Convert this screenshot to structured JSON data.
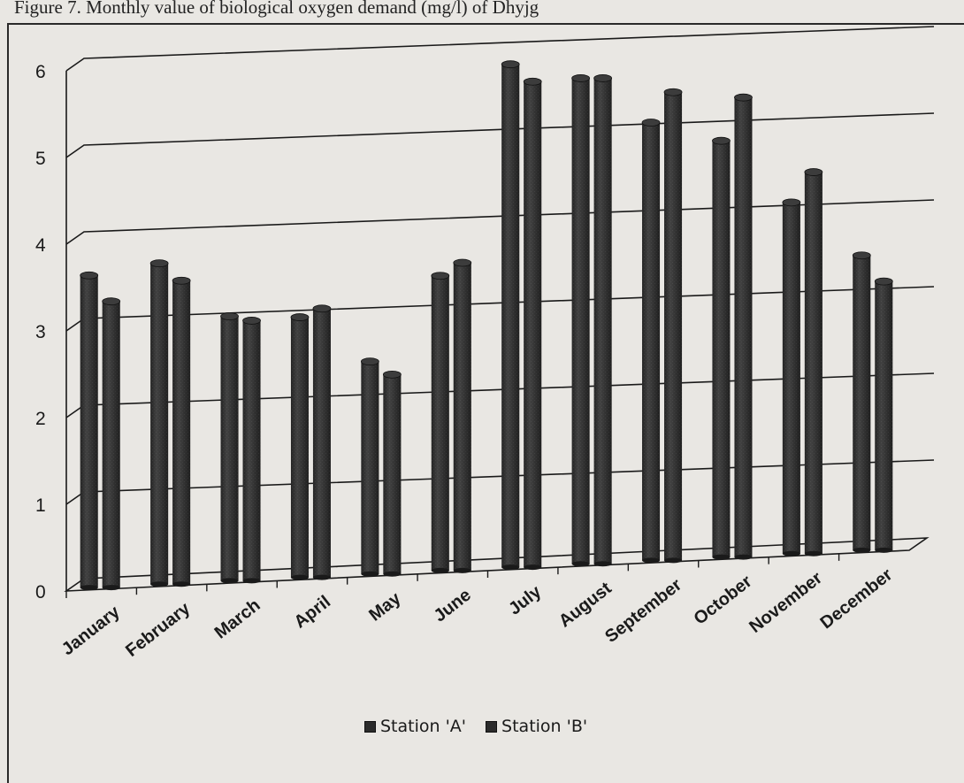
{
  "caption": "Figure 7. Monthly value of biological oxygen demand (mg/l) of Dhyjg",
  "chart_data": {
    "type": "bar",
    "title": "",
    "xlabel": "",
    "ylabel": "",
    "ylim": [
      0,
      6
    ],
    "yticks": [
      "0",
      "1",
      "2",
      "3",
      "4",
      "5",
      "6"
    ],
    "grid": true,
    "legend_position": "bottom-center",
    "categories": [
      "January",
      "February",
      "March",
      "April",
      "May",
      "June",
      "July",
      "August",
      "September",
      "October",
      "November",
      "December"
    ],
    "series": [
      {
        "name": "Station 'A'",
        "color": "#2b2b2b",
        "values": [
          3.6,
          3.7,
          3.05,
          3.0,
          2.45,
          3.4,
          5.8,
          5.6,
          5.05,
          4.8,
          4.05,
          3.4
        ]
      },
      {
        "name": "Station 'B'",
        "color": "#2b2b2b",
        "values": [
          3.3,
          3.5,
          3.0,
          3.1,
          2.3,
          3.55,
          5.6,
          5.6,
          5.4,
          5.3,
          4.4,
          3.1
        ]
      }
    ]
  }
}
